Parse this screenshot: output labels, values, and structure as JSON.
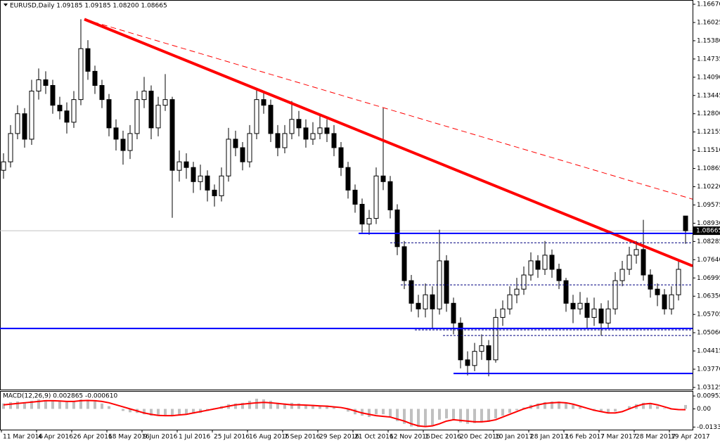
{
  "chart_data": {
    "type": "candlestick",
    "title": "EURUSD,Daily  1.09185 1.09185 1.08200 1.08665",
    "up_color": "#ffffff",
    "down_color": "#000000",
    "outline_color": "#000000",
    "ylim": [
      1.0305,
      1.1682
    ],
    "yticks": [
      {
        "value": 1.1667,
        "label": "1.16670"
      },
      1.16025,
      {
        "value": 1.1538,
        "label": "1.15380"
      },
      1.14735,
      {
        "value": 1.1409,
        "label": "1.14090"
      },
      1.13445,
      {
        "value": 1.128,
        "label": "1.12800"
      },
      1.12155,
      {
        "value": 1.1151,
        "label": "1.11510"
      },
      1.10865,
      {
        "value": 1.1022,
        "label": "1.10220"
      },
      1.09575,
      {
        "value": 1.0893,
        "label": "1.08930"
      },
      1.08285,
      {
        "value": 1.0764,
        "label": "1.07640"
      },
      1.06995,
      {
        "value": 1.0635,
        "label": "1.06350"
      },
      1.05705,
      {
        "value": 1.0506,
        "label": "1.05060"
      },
      1.04415,
      {
        "value": 1.0377,
        "label": "1.03770"
      },
      1.03125
    ],
    "xlim": [
      -0.5,
      98
    ],
    "xticks": [
      {
        "value": 0,
        "label": "11 Mar 2016"
      },
      {
        "value": 5,
        "label": "4 Apr 2016"
      },
      {
        "value": 10,
        "label": "26 Apr 2016"
      },
      {
        "value": 15,
        "label": "18 May 2016"
      },
      {
        "value": 20,
        "label": "9 Jun 2016"
      },
      {
        "value": 25,
        "label": "1 Jul 2016"
      },
      {
        "value": 30,
        "label": "25 Jul 2016"
      },
      {
        "value": 35,
        "label": "16 Aug 2016"
      },
      {
        "value": 40,
        "label": "7 Sep 2016"
      },
      {
        "value": 45,
        "label": "29 Sep 2016"
      },
      {
        "value": 50,
        "label": "21 Oct 2016"
      },
      {
        "value": 55,
        "label": "12 Nov 2016"
      },
      {
        "value": 60,
        "label": "1 Dec 2016"
      },
      {
        "value": 65,
        "label": "20 Dec 2016"
      },
      {
        "value": 70,
        "label": "10 Jan 2017"
      },
      {
        "value": 75,
        "label": "28 Jan 2017"
      },
      {
        "value": 80,
        "label": "16 Feb 2017"
      },
      {
        "value": 85,
        "label": "7 Mar 2017"
      },
      {
        "value": 90,
        "label": "28 Mar 2017"
      },
      {
        "value": 95,
        "label": "19 Apr 2017"
      }
    ],
    "open": [
      1.108,
      1.111,
      1.121,
      1.128,
      1.119,
      1.136,
      1.14,
      1.138,
      1.131,
      1.129,
      1.125,
      1.133,
      1.151,
      1.143,
      1.138,
      1.133,
      1.123,
      1.119,
      1.115,
      1.121,
      1.133,
      1.136,
      1.123,
      1.131,
      1.133,
      1.108,
      1.111,
      1.109,
      1.104,
      1.106,
      1.101,
      1.099,
      1.106,
      1.119,
      1.116,
      1.111,
      1.121,
      1.133,
      1.131,
      1.121,
      1.116,
      1.121,
      1.126,
      1.123,
      1.119,
      1.121,
      1.123,
      1.121,
      1.116,
      1.109,
      1.101,
      1.096,
      1.089,
      1.091,
      1.106,
      1.104,
      1.094,
      1.081,
      1.069,
      1.061,
      1.059,
      1.064,
      1.059,
      1.076,
      1.061,
      1.054,
      1.041,
      1.039,
      1.044,
      1.046,
      1.041,
      1.056,
      1.059,
      1.064,
      1.066,
      1.071,
      1.076,
      1.073,
      1.078,
      1.073,
      1.069,
      1.061,
      1.059,
      1.061,
      1.056,
      1.059,
      1.054,
      1.059,
      1.069,
      1.073,
      1.078,
      1.08,
      1.071,
      1.066,
      1.064,
      1.059,
      1.064,
      1.09185
    ],
    "high": [
      1.114,
      1.124,
      1.131,
      1.13,
      1.14,
      1.144,
      1.143,
      1.14,
      1.134,
      1.132,
      1.136,
      1.1614,
      1.154,
      1.145,
      1.14,
      1.135,
      1.126,
      1.122,
      1.124,
      1.136,
      1.141,
      1.138,
      1.134,
      1.142,
      1.134,
      1.115,
      1.114,
      1.111,
      1.11,
      1.108,
      1.103,
      1.109,
      1.123,
      1.122,
      1.118,
      1.124,
      1.1366,
      1.136,
      1.133,
      1.124,
      1.124,
      1.1325,
      1.129,
      1.126,
      1.125,
      1.128,
      1.126,
      1.124,
      1.118,
      1.111,
      1.103,
      1.098,
      1.094,
      1.109,
      1.13,
      1.106,
      1.096,
      1.083,
      1.071,
      1.064,
      1.068,
      1.067,
      1.087,
      1.078,
      1.063,
      1.056,
      1.044,
      1.047,
      1.05,
      1.048,
      1.059,
      1.062,
      1.067,
      1.07,
      1.074,
      1.079,
      1.078,
      1.083,
      1.08,
      1.075,
      1.07,
      1.064,
      1.065,
      1.063,
      1.063,
      1.061,
      1.062,
      1.072,
      1.076,
      1.081,
      1.083,
      1.0905,
      1.073,
      1.068,
      1.066,
      1.067,
      1.076,
      1.09185
    ],
    "low": [
      1.105,
      1.109,
      1.119,
      1.116,
      1.117,
      1.133,
      1.135,
      1.128,
      1.126,
      1.121,
      1.123,
      1.131,
      1.14,
      1.135,
      1.13,
      1.12,
      1.115,
      1.11,
      1.112,
      1.119,
      1.13,
      1.119,
      1.12,
      1.129,
      1.0912,
      1.104,
      1.105,
      1.1,
      1.101,
      1.097,
      1.0952,
      1.097,
      1.104,
      1.113,
      1.108,
      1.109,
      1.119,
      1.128,
      1.118,
      1.113,
      1.114,
      1.119,
      1.12,
      1.116,
      1.117,
      1.119,
      1.118,
      1.113,
      1.106,
      1.098,
      1.093,
      1.086,
      1.0852,
      1.089,
      1.101,
      1.091,
      1.078,
      1.066,
      1.058,
      1.056,
      1.056,
      1.052,
      1.057,
      1.058,
      1.05,
      1.038,
      1.0355,
      1.037,
      1.041,
      1.0352,
      1.04,
      1.053,
      1.057,
      1.061,
      1.064,
      1.069,
      1.07,
      1.071,
      1.07,
      1.066,
      1.058,
      1.054,
      1.057,
      1.052,
      1.053,
      1.0495,
      1.052,
      1.057,
      1.067,
      1.071,
      1.075,
      1.069,
      1.063,
      1.06,
      1.057,
      1.057,
      1.062,
      1.082
    ],
    "close": [
      1.111,
      1.121,
      1.128,
      1.119,
      1.136,
      1.14,
      1.138,
      1.131,
      1.129,
      1.125,
      1.133,
      1.151,
      1.143,
      1.138,
      1.133,
      1.123,
      1.119,
      1.115,
      1.121,
      1.133,
      1.136,
      1.123,
      1.131,
      1.133,
      1.108,
      1.111,
      1.109,
      1.104,
      1.106,
      1.101,
      1.099,
      1.106,
      1.119,
      1.116,
      1.111,
      1.121,
      1.133,
      1.131,
      1.121,
      1.116,
      1.121,
      1.126,
      1.123,
      1.119,
      1.121,
      1.123,
      1.121,
      1.116,
      1.109,
      1.101,
      1.096,
      1.089,
      1.091,
      1.106,
      1.104,
      1.094,
      1.081,
      1.069,
      1.061,
      1.059,
      1.064,
      1.059,
      1.076,
      1.061,
      1.054,
      1.041,
      1.039,
      1.044,
      1.046,
      1.041,
      1.056,
      1.059,
      1.064,
      1.066,
      1.071,
      1.076,
      1.073,
      1.078,
      1.073,
      1.069,
      1.061,
      1.059,
      1.061,
      1.056,
      1.059,
      1.054,
      1.059,
      1.069,
      1.073,
      1.078,
      1.08,
      1.071,
      1.066,
      1.064,
      1.059,
      1.064,
      1.073,
      1.08665
    ],
    "last_price": 1.08665,
    "last_price_color": "#c0c0c0",
    "lines": [
      {
        "x": [
          11.5,
          98.5
        ],
        "y": [
          1.1614,
          1.0742
        ],
        "color": "#ff0000",
        "style": "solid",
        "width": 4
      },
      {
        "x": [
          11.5,
          98
        ],
        "y": [
          1.1614,
          1.0978
        ],
        "color": "#ff0000",
        "style": "dashed",
        "width": 1
      },
      {
        "x": [
          50.5,
          98
        ],
        "y": [
          1.0857,
          1.0857
        ],
        "color": "#0000ff",
        "style": "solid",
        "width": 2
      },
      {
        "x": [
          -0.5,
          98
        ],
        "y": [
          1.0521,
          1.0521
        ],
        "color": "#0000ff",
        "style": "solid",
        "width": 2
      },
      {
        "x": [
          64,
          98
        ],
        "y": [
          1.0362,
          1.0362
        ],
        "color": "#0000ff",
        "style": "solid",
        "width": 2
      },
      {
        "x": [
          55,
          98
        ],
        "y": [
          1.0824,
          1.0824
        ],
        "color": "#000080",
        "style": "dotted",
        "width": 1
      },
      {
        "x": [
          56.5,
          98
        ],
        "y": [
          1.0675,
          1.0675
        ],
        "color": "#000080",
        "style": "dotted",
        "width": 1
      },
      {
        "x": [
          58.5,
          98
        ],
        "y": [
          1.0516,
          1.0516
        ],
        "color": "#000080",
        "style": "dotted",
        "width": 1
      },
      {
        "x": [
          62.5,
          98
        ],
        "y": [
          1.0496,
          1.0496
        ],
        "color": "#000080",
        "style": "dotted",
        "width": 1
      }
    ],
    "macd_label": "MACD(12,26,9) 0.002865 -0.000610",
    "macd_ylim": [
      -0.0153,
      0.0127
    ],
    "macd_yticks": [
      0.009527,
      {
        "value": 0,
        "label": "0.00"
      },
      -0.013399
    ],
    "macd_color": "#c0c0c0",
    "signal_color": "#ff0000",
    "macd": [
      0.004,
      0.005,
      0.0055,
      0.005,
      0.006,
      0.007,
      0.0065,
      0.006,
      0.0055,
      0.005,
      0.0055,
      0.007,
      0.0065,
      0.0055,
      0.004,
      0.002,
      0,
      -0.0015,
      -0.0025,
      -0.003,
      -0.004,
      -0.005,
      -0.005,
      -0.0045,
      -0.0055,
      -0.0045,
      -0.004,
      -0.0035,
      -0.003,
      -0.0015,
      0.0005,
      0.002,
      0.0035,
      0.004,
      0.0045,
      0.006,
      0.0075,
      0.007,
      0.006,
      0.0045,
      0.004,
      0.0045,
      0.004,
      0.003,
      0.003,
      0.0025,
      0.0025,
      0.0015,
      0,
      -0.002,
      -0.004,
      -0.005,
      -0.006,
      -0.004,
      -0.004,
      -0.006,
      -0.009,
      -0.011,
      -0.013,
      -0.0134,
      -0.0125,
      -0.012,
      -0.008,
      -0.007,
      -0.008,
      -0.01,
      -0.011,
      -0.0105,
      -0.01,
      -0.0095,
      -0.007,
      -0.005,
      -0.003,
      -0.001,
      0.001,
      0.003,
      0.004,
      0.005,
      0.0055,
      0.0055,
      0.0045,
      0.003,
      0.0015,
      0,
      -0.0015,
      -0.002,
      -0.003,
      -0.002,
      0,
      0.002,
      0.0035,
      0.0045,
      0.004,
      0.002,
      0.0005,
      -0.0005,
      -0.0008,
      0.002865
    ],
    "signal": [
      0.003,
      0.0035,
      0.004,
      0.0045,
      0.005,
      0.0055,
      0.006,
      0.006,
      0.0058,
      0.0055,
      0.0055,
      0.006,
      0.0062,
      0.006,
      0.0055,
      0.0045,
      0.003,
      0.0015,
      0,
      -0.0015,
      -0.003,
      -0.004,
      -0.0048,
      -0.005,
      -0.005,
      -0.0045,
      -0.004,
      -0.003,
      -0.002,
      -0.001,
      0,
      0.001,
      0.002,
      0.003,
      0.0035,
      0.004,
      0.0045,
      0.0048,
      0.0045,
      0.004,
      0.0035,
      0.003,
      0.003,
      0.0028,
      0.0025,
      0.0022,
      0.002,
      0.0015,
      0.001,
      0,
      -0.0015,
      -0.003,
      -0.004,
      -0.005,
      -0.0055,
      -0.006,
      -0.0075,
      -0.009,
      -0.011,
      -0.0125,
      -0.013,
      -0.0125,
      -0.011,
      -0.009,
      -0.008,
      -0.0085,
      -0.009,
      -0.0095,
      -0.0095,
      -0.009,
      -0.008,
      -0.006,
      -0.004,
      -0.002,
      0,
      0.0015,
      0.003,
      0.004,
      0.0045,
      0.0048,
      0.0045,
      0.0035,
      0.002,
      0.0005,
      -0.001,
      -0.002,
      -0.003,
      -0.003,
      -0.002,
      0,
      0.002,
      0.0035,
      0.004,
      0.003,
      0.0015,
      0,
      -0.0005,
      -0.00061
    ]
  }
}
